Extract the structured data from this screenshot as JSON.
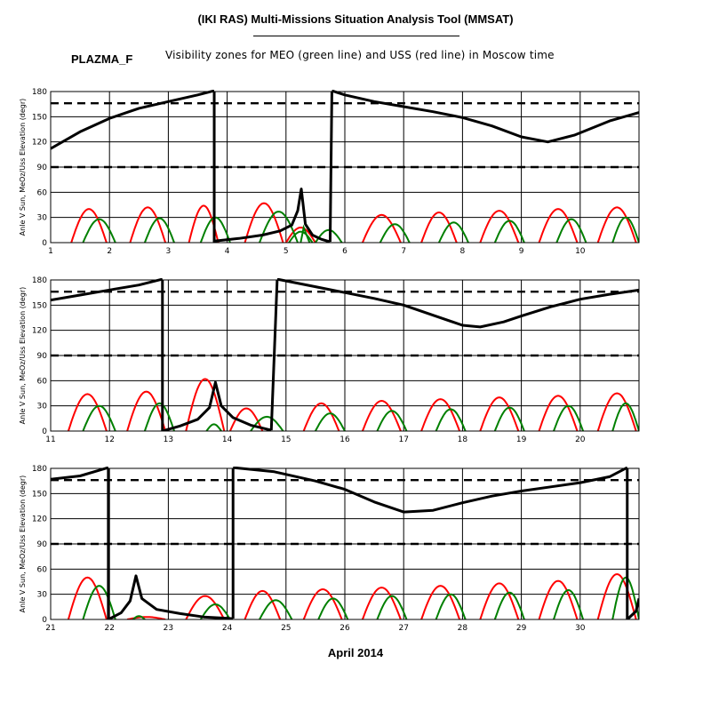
{
  "header": {
    "title": "(IKI RAS) Multi-Missions Situation Analysis Tool (MMSAT)",
    "instrument": "PLAZMA_F",
    "subtitle": "Visibility zones for MEO (green line) and USS (red line) in Moscow time"
  },
  "colors": {
    "meo": "#008000",
    "uss": "#ff0000",
    "angle": "#000000",
    "grid": "#000000"
  },
  "chart_data": [
    {
      "type": "line",
      "xlabel": "",
      "ylabel": "Anle V Sun, MeOz/Uss Elevation (degr)",
      "xlim": [
        1,
        11
      ],
      "ylim": [
        0,
        180
      ],
      "x_ticks": [
        "1",
        "2",
        "3",
        "4",
        "5",
        "6",
        "7",
        "8",
        "9",
        "10"
      ],
      "y_ticks": [
        "0",
        "30",
        "60",
        "90",
        "120",
        "150",
        "180"
      ],
      "reference_lines": [
        90,
        166
      ],
      "grid": true,
      "angle_series": {
        "name": "",
        "segments": [
          [
            [
              1,
              112
            ],
            [
              1.5,
              132
            ],
            [
              2,
              148
            ],
            [
              2.5,
              160
            ],
            [
              3,
              168
            ],
            [
              3.5,
              176
            ],
            [
              3.78,
              181
            ]
          ],
          [
            [
              3.78,
              0
            ],
            [
              3.8,
              2
            ],
            [
              4.2,
              5
            ],
            [
              4.6,
              9
            ],
            [
              4.9,
              14
            ],
            [
              5.1,
              21
            ],
            [
              5.2,
              38
            ],
            [
              5.26,
              64
            ],
            [
              5.33,
              22
            ],
            [
              5.45,
              9
            ],
            [
              5.6,
              4
            ],
            [
              5.75,
              1
            ]
          ],
          [
            [
              5.78,
              181
            ],
            [
              6,
              176
            ],
            [
              6.5,
              168
            ],
            [
              7,
              162
            ],
            [
              7.5,
              156
            ],
            [
              8,
              149
            ],
            [
              8.5,
              139
            ],
            [
              9,
              126
            ],
            [
              9.45,
              120
            ],
            [
              9.9,
              128
            ],
            [
              10.5,
              145
            ],
            [
              11,
              155
            ]
          ]
        ]
      },
      "uss_passes": [
        [
          1.35,
          1.95,
          40
        ],
        [
          2.35,
          2.95,
          42
        ],
        [
          3.35,
          3.85,
          44
        ],
        [
          4.3,
          4.95,
          47
        ],
        [
          5.0,
          5.5,
          18
        ],
        [
          6.3,
          6.95,
          33
        ],
        [
          7.3,
          7.9,
          36
        ],
        [
          8.3,
          8.95,
          38
        ],
        [
          9.3,
          9.95,
          40
        ],
        [
          10.3,
          10.95,
          42
        ]
      ],
      "meo_passes": [
        [
          1.55,
          2.1,
          28
        ],
        [
          2.6,
          3.1,
          29
        ],
        [
          3.55,
          4.05,
          30
        ],
        [
          4.55,
          5.2,
          37
        ],
        [
          5.05,
          5.45,
          13
        ],
        [
          5.5,
          5.95,
          15
        ],
        [
          6.6,
          7.1,
          22
        ],
        [
          7.6,
          8.1,
          24
        ],
        [
          8.55,
          9.05,
          26
        ],
        [
          9.6,
          10.1,
          28
        ],
        [
          10.55,
          11.0,
          30
        ]
      ],
      "meo_cut": [
        [
          5.25,
          0
        ],
        [
          5.3,
          18
        ],
        [
          5.4,
          0
        ]
      ]
    },
    {
      "type": "line",
      "xlabel": "",
      "ylabel": "Anle V Sun, MeOz/Uss Elevation (degr)",
      "xlim": [
        11,
        21
      ],
      "ylim": [
        0,
        180
      ],
      "x_ticks": [
        "11",
        "12",
        "13",
        "14",
        "15",
        "16",
        "17",
        "18",
        "19",
        "20"
      ],
      "y_ticks": [
        "0",
        "30",
        "60",
        "90",
        "120",
        "150",
        "180"
      ],
      "reference_lines": [
        90,
        166
      ],
      "grid": true,
      "angle_series": {
        "name": "",
        "segments": [
          [
            [
              11,
              156
            ],
            [
              11.5,
              162
            ],
            [
              12,
              168
            ],
            [
              12.5,
              174
            ],
            [
              12.9,
              181
            ]
          ],
          [
            [
              12.9,
              0
            ],
            [
              13.2,
              6
            ],
            [
              13.5,
              14
            ],
            [
              13.7,
              28
            ],
            [
              13.8,
              58
            ],
            [
              13.9,
              30
            ],
            [
              14.1,
              16
            ],
            [
              14.4,
              7
            ],
            [
              14.75,
              1
            ]
          ],
          [
            [
              14.85,
              181
            ],
            [
              15.5,
              172
            ],
            [
              16,
              165
            ],
            [
              16.5,
              158
            ],
            [
              17,
              150
            ],
            [
              17.5,
              138
            ],
            [
              18,
              126
            ],
            [
              18.3,
              124
            ],
            [
              18.7,
              130
            ],
            [
              19,
              137
            ],
            [
              19.5,
              148
            ],
            [
              20,
              157
            ],
            [
              20.5,
              163
            ],
            [
              21,
              168
            ]
          ]
        ]
      },
      "uss_passes": [
        [
          11.3,
          11.95,
          44
        ],
        [
          12.3,
          12.95,
          47
        ],
        [
          13.3,
          13.95,
          62
        ],
        [
          14.05,
          14.6,
          27
        ],
        [
          15.3,
          15.9,
          33
        ],
        [
          16.3,
          16.95,
          36
        ],
        [
          17.3,
          17.95,
          38
        ],
        [
          18.3,
          18.95,
          40
        ],
        [
          19.3,
          19.95,
          42
        ],
        [
          20.3,
          20.95,
          45
        ]
      ],
      "meo_passes": [
        [
          11.55,
          12.1,
          30
        ],
        [
          12.6,
          13.1,
          33
        ],
        [
          13.65,
          13.9,
          8
        ],
        [
          14.4,
          14.95,
          17
        ],
        [
          15.5,
          16.0,
          21
        ],
        [
          16.55,
          17.05,
          24
        ],
        [
          17.55,
          18.05,
          26
        ],
        [
          18.55,
          19.05,
          28
        ],
        [
          19.55,
          20.05,
          30
        ],
        [
          20.55,
          21.0,
          33
        ]
      ],
      "meo_cut": []
    },
    {
      "type": "line",
      "xlabel": "April 2014",
      "ylabel": "Anle V Sun, MeOz/Uss Elevation (degr)",
      "xlim": [
        21,
        31
      ],
      "ylim": [
        0,
        180
      ],
      "x_ticks": [
        "21",
        "22",
        "23",
        "24",
        "25",
        "26",
        "27",
        "28",
        "29",
        "30"
      ],
      "y_ticks": [
        "0",
        "30",
        "60",
        "90",
        "120",
        "150",
        "180"
      ],
      "reference_lines": [
        90,
        166
      ],
      "grid": true,
      "angle_series": {
        "name": "",
        "segments": [
          [
            [
              21,
              167
            ],
            [
              21.5,
              171
            ],
            [
              21.98,
              181
            ]
          ],
          [
            [
              21.98,
              0
            ],
            [
              22.2,
              8
            ],
            [
              22.35,
              22
            ],
            [
              22.45,
              52
            ],
            [
              22.55,
              25
            ],
            [
              22.8,
              12
            ],
            [
              23.2,
              7
            ],
            [
              23.6,
              3
            ],
            [
              24.1,
              1
            ]
          ],
          [
            [
              24.1,
              181
            ],
            [
              24.8,
              176
            ],
            [
              25.5,
              165
            ],
            [
              26,
              155
            ],
            [
              26.5,
              140
            ],
            [
              27,
              128
            ],
            [
              27.5,
              130
            ],
            [
              28,
              139
            ],
            [
              28.5,
              147
            ],
            [
              29,
              153
            ],
            [
              29.5,
              158
            ],
            [
              30,
              163
            ],
            [
              30.5,
              170
            ],
            [
              30.8,
              181
            ]
          ],
          [
            [
              30.8,
              0
            ],
            [
              30.95,
              10
            ],
            [
              31,
              25
            ]
          ]
        ]
      },
      "uss_passes": [
        [
          21.3,
          21.95,
          50
        ],
        [
          22.3,
          22.95,
          3
        ],
        [
          23.3,
          23.95,
          28
        ],
        [
          24.3,
          24.9,
          34
        ],
        [
          25.3,
          25.95,
          36
        ],
        [
          26.3,
          26.95,
          38
        ],
        [
          27.3,
          27.95,
          40
        ],
        [
          28.3,
          28.95,
          43
        ],
        [
          29.3,
          29.95,
          46
        ],
        [
          30.3,
          30.95,
          54
        ]
      ],
      "meo_passes": [
        [
          21.55,
          22.1,
          40
        ],
        [
          22.4,
          22.6,
          4
        ],
        [
          23.55,
          24.05,
          18
        ],
        [
          24.55,
          25.1,
          23
        ],
        [
          25.55,
          26.05,
          25
        ],
        [
          26.55,
          27.05,
          28
        ],
        [
          27.55,
          28.05,
          30
        ],
        [
          28.55,
          29.05,
          32
        ],
        [
          29.55,
          30.05,
          35
        ],
        [
          30.55,
          31.0,
          50
        ]
      ],
      "meo_cut": []
    }
  ]
}
